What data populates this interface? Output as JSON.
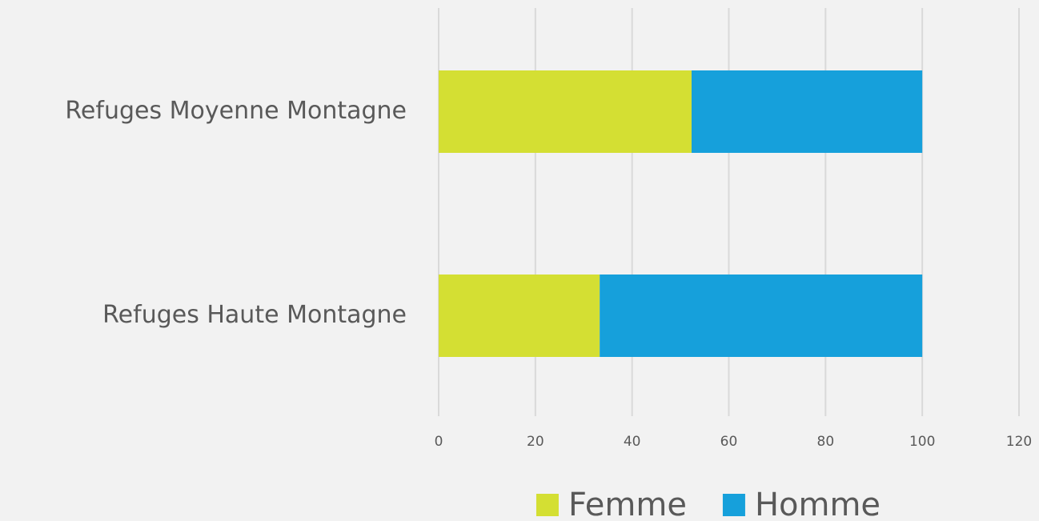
{
  "chart_data": {
    "type": "bar",
    "orientation": "horizontal",
    "stacked": true,
    "categories": [
      "Refuges Moyenne Montagne",
      "Refuges Haute Montagne"
    ],
    "series": [
      {
        "name": "Femme",
        "color": "#d4df33",
        "values": [
          52.3,
          33.3
        ]
      },
      {
        "name": "Homme",
        "color": "#16a0db",
        "values": [
          47.7,
          66.7
        ]
      }
    ],
    "xlim": [
      0,
      120
    ],
    "xticks": [
      0,
      20,
      40,
      60,
      80,
      100,
      120
    ],
    "grid": true,
    "legend": "bottom"
  }
}
